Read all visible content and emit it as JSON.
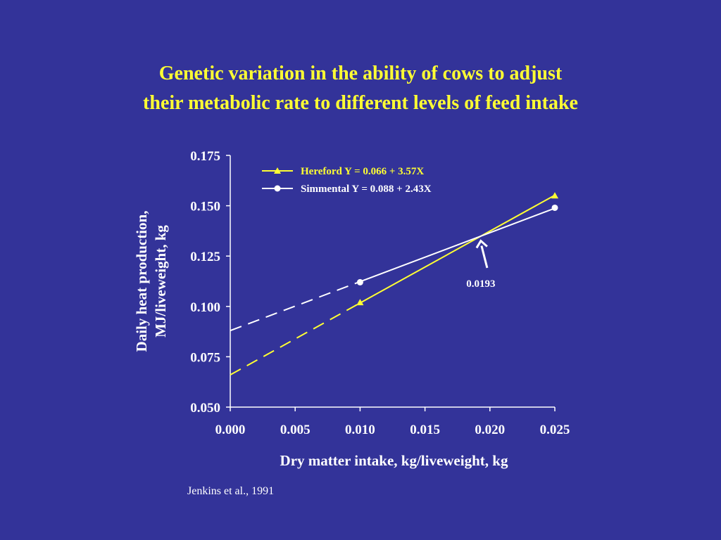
{
  "slide": {
    "title_line1": "Genetic variation in the ability of cows to adjust",
    "title_line2": "their metabolic rate to different levels of feed intake",
    "citation": "Jenkins et al., 1991"
  },
  "colors": {
    "background": "#333399",
    "title": "#ffff33",
    "text": "#ffffff",
    "hereford": "#ffff33",
    "simmental": "#ffffff"
  },
  "chart_data": {
    "type": "line",
    "xlabel": "Dry matter intake, kg/liveweight, kg",
    "ylabel_line1": "Daily heat production,",
    "ylabel_line2": "MJ/liveweight, kg",
    "xlim": [
      0.0,
      0.025
    ],
    "ylim": [
      0.05,
      0.175
    ],
    "x_ticks": [
      "0.000",
      "0.005",
      "0.010",
      "0.015",
      "0.020",
      "0.025"
    ],
    "y_ticks": [
      "0.050",
      "0.075",
      "0.100",
      "0.125",
      "0.150",
      "0.175"
    ],
    "grid": false,
    "legend_position": "top-center",
    "series": [
      {
        "name": "Hereford Y = 0.066 + 3.57X",
        "intercept": 0.066,
        "slope": 3.57,
        "marker": "triangle",
        "extrapolated_from": 0.0,
        "observed_x": [
          0.01,
          0.025
        ],
        "observed_y": [
          0.102,
          0.155
        ]
      },
      {
        "name": "Simmental Y = 0.088 + 2.43X",
        "intercept": 0.088,
        "slope": 2.43,
        "marker": "circle",
        "extrapolated_from": 0.0,
        "observed_x": [
          0.01,
          0.025
        ],
        "observed_y": [
          0.112,
          0.149
        ]
      }
    ],
    "annotations": [
      {
        "text": "0.0193",
        "x": 0.0193,
        "y": 0.135
      }
    ]
  }
}
